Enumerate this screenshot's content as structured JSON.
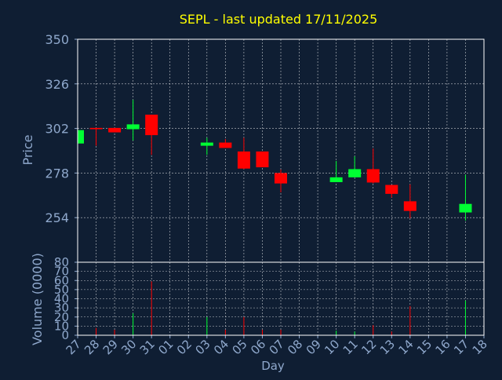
{
  "chart_data": {
    "type": "candlestick",
    "title": "SEPL - last updated 17/11/2025",
    "xlabel": "Day",
    "price_label": "Price",
    "volume_label": "Volume (0000)",
    "x_tick_labels": [
      "27",
      "28",
      "29",
      "30",
      "31",
      "01",
      "02",
      "03",
      "04",
      "05",
      "06",
      "07",
      "08",
      "09",
      "10",
      "11",
      "12",
      "13",
      "14",
      "15",
      "16",
      "17",
      "18"
    ],
    "price_axis": {
      "ylim": [
        230,
        350
      ],
      "ticks": [
        "350",
        "326",
        "302",
        "278",
        "254"
      ],
      "tick_values": [
        350,
        326,
        302,
        278,
        254
      ]
    },
    "volume_axis": {
      "ylim": [
        0,
        80
      ],
      "ticks": [
        "80",
        "70",
        "60",
        "50",
        "40",
        "30",
        "20",
        "10",
        "0"
      ],
      "tick_values": [
        80,
        70,
        60,
        50,
        40,
        30,
        20,
        10,
        0
      ]
    },
    "grid": true,
    "colors": {
      "up": "#00ff33",
      "down": "#ff0000",
      "background": "#0f1e33",
      "grid": "#ffffff",
      "axis_text": "#8fa8cc",
      "title_text": "#ffff00"
    },
    "candles": [
      {
        "day": "27",
        "open": 293.9,
        "high": 301.1,
        "low": 293.9,
        "close": 301.1
      },
      {
        "day": "28",
        "open": 302.3,
        "high": 302.3,
        "low": 292.7,
        "close": 301.6
      },
      {
        "day": "29",
        "open": 302.3,
        "high": 302.3,
        "low": 299.9,
        "close": 299.9
      },
      {
        "day": "30",
        "open": 301.6,
        "high": 317.4,
        "low": 295.5,
        "close": 304.2
      },
      {
        "day": "31",
        "open": 309.4,
        "high": 309.4,
        "low": 287.8,
        "close": 298.4
      },
      {
        "day": "03",
        "open": 292.7,
        "high": 297.0,
        "low": 287.8,
        "close": 294.4
      },
      {
        "day": "04",
        "open": 294.4,
        "high": 296.3,
        "low": 291.5,
        "close": 291.5
      },
      {
        "day": "05",
        "open": 289.6,
        "high": 297.0,
        "low": 280.1,
        "close": 280.4
      },
      {
        "day": "06",
        "open": 289.6,
        "high": 289.6,
        "low": 281.1,
        "close": 281.1
      },
      {
        "day": "07",
        "open": 278.0,
        "high": 279.9,
        "low": 267.6,
        "close": 272.4
      },
      {
        "day": "10",
        "open": 273.1,
        "high": 284.5,
        "low": 273.1,
        "close": 275.7
      },
      {
        "day": "11",
        "open": 275.7,
        "high": 287.0,
        "low": 275.7,
        "close": 280.1
      },
      {
        "day": "12",
        "open": 280.1,
        "high": 291.2,
        "low": 272.4,
        "close": 272.9
      },
      {
        "day": "13",
        "open": 271.6,
        "high": 271.6,
        "low": 264.8,
        "close": 266.8
      },
      {
        "day": "14",
        "open": 262.8,
        "high": 271.9,
        "low": 253.6,
        "close": 257.6
      },
      {
        "day": "17",
        "open": 256.8,
        "high": 277.1,
        "low": 252.4,
        "close": 261.4
      }
    ],
    "volume": [
      {
        "day": "27",
        "value": 0,
        "dir": "up"
      },
      {
        "day": "28",
        "value": 8,
        "dir": "down"
      },
      {
        "day": "29",
        "value": 6,
        "dir": "down"
      },
      {
        "day": "30",
        "value": 24,
        "dir": "up"
      },
      {
        "day": "31",
        "value": 59,
        "dir": "down"
      },
      {
        "day": "03",
        "value": 20,
        "dir": "up"
      },
      {
        "day": "04",
        "value": 6,
        "dir": "down"
      },
      {
        "day": "05",
        "value": 20,
        "dir": "down"
      },
      {
        "day": "06",
        "value": 6,
        "dir": "down"
      },
      {
        "day": "07",
        "value": 6,
        "dir": "down"
      },
      {
        "day": "10",
        "value": 5,
        "dir": "up"
      },
      {
        "day": "11",
        "value": 4,
        "dir": "up"
      },
      {
        "day": "12",
        "value": 11,
        "dir": "down"
      },
      {
        "day": "13",
        "value": 4,
        "dir": "down"
      },
      {
        "day": "14",
        "value": 32,
        "dir": "down"
      },
      {
        "day": "17",
        "value": 38,
        "dir": "up"
      }
    ]
  }
}
